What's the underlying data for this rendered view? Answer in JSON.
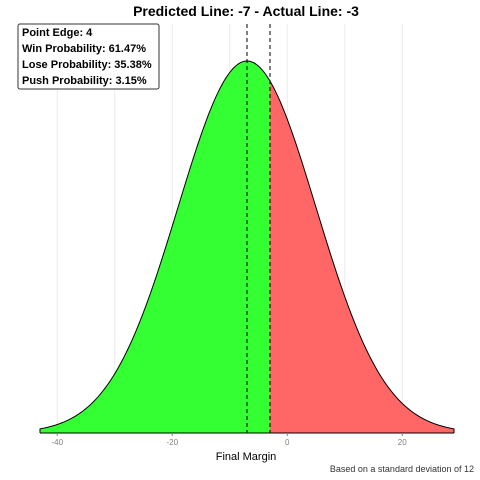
{
  "chart_data": {
    "type": "area",
    "title": "Predicted Line: -7  -  Actual Line: -3",
    "xlabel": "Final Margin",
    "ylabel": "",
    "caption": "Based on a standard deviation of 12",
    "distribution": {
      "kind": "normal",
      "mean": -7,
      "sd": 12
    },
    "xlim": [
      -43,
      29
    ],
    "x_ticks": [
      -40,
      -20,
      0,
      20
    ],
    "x_tick_labels": [
      "-40",
      "-20",
      "0",
      "20"
    ],
    "vlines": [
      -7,
      -3
    ],
    "regions": [
      {
        "name": "win",
        "from": -43,
        "to": -3,
        "color": "#33ff33"
      },
      {
        "name": "lose",
        "from": -3,
        "to": 29,
        "color": "#ff6666"
      }
    ],
    "annotation": [
      "Point Edge: 4",
      "Win Probability: 61.47%",
      "Lose Probability: 35.38%",
      "Push Probability: 3.15%"
    ],
    "grid": true,
    "legend": "none"
  }
}
